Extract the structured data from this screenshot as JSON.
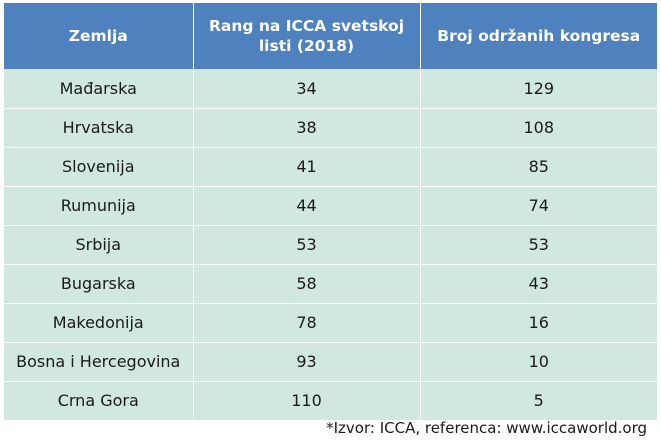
{
  "table": {
    "headers": [
      "Zemlja",
      "Rang na ICCA svetskoj listi (2018)",
      "Broj održanih kongresa"
    ],
    "rows": [
      [
        "Mađarska",
        "34",
        "129"
      ],
      [
        "Hrvatska",
        "38",
        "108"
      ],
      [
        "Slovenija",
        "41",
        "85"
      ],
      [
        "Rumunija",
        "44",
        "74"
      ],
      [
        "Srbija",
        "53",
        "53"
      ],
      [
        "Bugarska",
        "58",
        "43"
      ],
      [
        "Makedonija",
        "78",
        "16"
      ],
      [
        "Bosna i Hercegovina",
        "93",
        "10"
      ],
      [
        "Crna Gora",
        "110",
        "5"
      ]
    ]
  },
  "footnote": "*Izvor: ICCA, referenca: www.iccaworld.org",
  "colors": {
    "header_bg": "#4e81bd",
    "header_text": "#ffffff",
    "row_bg": "#d0e8df",
    "text": "#1a1a1a"
  }
}
